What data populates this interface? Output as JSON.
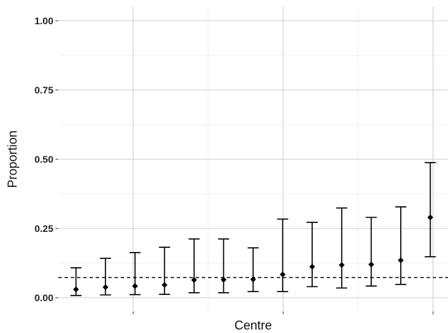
{
  "chart_data": {
    "type": "scatter",
    "xlabel": "Centre",
    "ylabel": "Proportion",
    "ylim": [
      -0.05,
      1.05
    ],
    "y_ticks": [
      0.0,
      0.25,
      0.5,
      0.75,
      1.0
    ],
    "y_tick_labels": [
      "0.00",
      "0.25",
      "0.50",
      "0.75",
      "1.00"
    ],
    "x_tick_labels": [],
    "reference_line": 0.073,
    "grid": true,
    "colors": {
      "points": "#000000",
      "grid": "#d6d6d6",
      "background": "#ffffff"
    },
    "points": [
      {
        "estimate": 0.03,
        "lower": 0.008,
        "upper": 0.108
      },
      {
        "estimate": 0.038,
        "lower": 0.01,
        "upper": 0.142
      },
      {
        "estimate": 0.042,
        "lower": 0.011,
        "upper": 0.163
      },
      {
        "estimate": 0.046,
        "lower": 0.012,
        "upper": 0.182
      },
      {
        "estimate": 0.064,
        "lower": 0.018,
        "upper": 0.212
      },
      {
        "estimate": 0.065,
        "lower": 0.018,
        "upper": 0.212
      },
      {
        "estimate": 0.066,
        "lower": 0.022,
        "upper": 0.18
      },
      {
        "estimate": 0.084,
        "lower": 0.022,
        "upper": 0.284
      },
      {
        "estimate": 0.112,
        "lower": 0.04,
        "upper": 0.272
      },
      {
        "estimate": 0.118,
        "lower": 0.035,
        "upper": 0.324
      },
      {
        "estimate": 0.12,
        "lower": 0.042,
        "upper": 0.29
      },
      {
        "estimate": 0.135,
        "lower": 0.048,
        "upper": 0.328
      },
      {
        "estimate": 0.29,
        "lower": 0.148,
        "upper": 0.488
      }
    ]
  }
}
